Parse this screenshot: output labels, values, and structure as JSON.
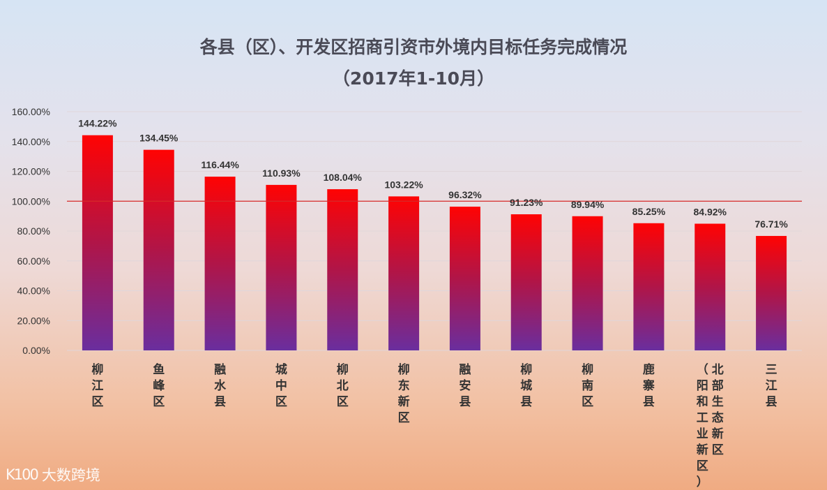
{
  "title": "各县（区）、开发区招商引资市外境内目标任务完成情况",
  "subtitle": "（2017年1-10月）",
  "watermark": {
    "logo": "K100",
    "text": "大数跨境"
  },
  "colors": {
    "bar_top": "#ff0303",
    "bar_mid": "#b01548",
    "bar_bottom": "#6a2e9e",
    "ref_line": "#d62a2a",
    "grid": "#e0d6da"
  },
  "chart_data": {
    "type": "bar",
    "title": "各县（区）、开发区招商引资市外境内目标任务完成情况",
    "subtitle": "（2017年1-10月）",
    "categories": [
      "柳江区",
      "鱼峰区",
      "融水县",
      "城中区",
      "柳北区",
      "柳东新区",
      "融安县",
      "柳城县",
      "柳南区",
      "鹿寨县",
      "北部生态新区（阳和工业新区）",
      "三江县"
    ],
    "category_columns": [
      [
        [
          "柳",
          "江",
          "区"
        ]
      ],
      [
        [
          "鱼",
          "峰",
          "区"
        ]
      ],
      [
        [
          "融",
          "水",
          "县"
        ]
      ],
      [
        [
          "城",
          "中",
          "区"
        ]
      ],
      [
        [
          "柳",
          "北",
          "区"
        ]
      ],
      [
        [
          "柳",
          "东",
          "新",
          "区"
        ]
      ],
      [
        [
          "融",
          "安",
          "县"
        ]
      ],
      [
        [
          "柳",
          "城",
          "县"
        ]
      ],
      [
        [
          "柳",
          "南",
          "区"
        ]
      ],
      [
        [
          "鹿",
          "寨",
          "县"
        ]
      ],
      [
        [
          "北",
          "部",
          "生",
          "态",
          "新",
          "区"
        ],
        [
          "（",
          "阳",
          "和",
          "工",
          "业",
          "新",
          "区",
          "）"
        ]
      ],
      [
        [
          "三",
          "江",
          "县"
        ]
      ]
    ],
    "values": [
      144.22,
      134.45,
      116.44,
      110.93,
      108.04,
      103.22,
      96.32,
      91.23,
      89.94,
      85.25,
      84.92,
      76.71
    ],
    "value_labels": [
      "144.22%",
      "134.45%",
      "116.44%",
      "110.93%",
      "108.04%",
      "103.22%",
      "96.32%",
      "91.23%",
      "89.94%",
      "85.25%",
      "84.92%",
      "76.71%"
    ],
    "ylim": [
      0,
      160
    ],
    "yticks": [
      0,
      20,
      40,
      60,
      80,
      100,
      120,
      140,
      160
    ],
    "ytick_labels": [
      "0.00%",
      "20.00%",
      "40.00%",
      "60.00%",
      "80.00%",
      "100.00%",
      "120.00%",
      "140.00%",
      "160.00%"
    ],
    "reference_line": 100,
    "xlabel": "",
    "ylabel": "",
    "grid": true
  }
}
